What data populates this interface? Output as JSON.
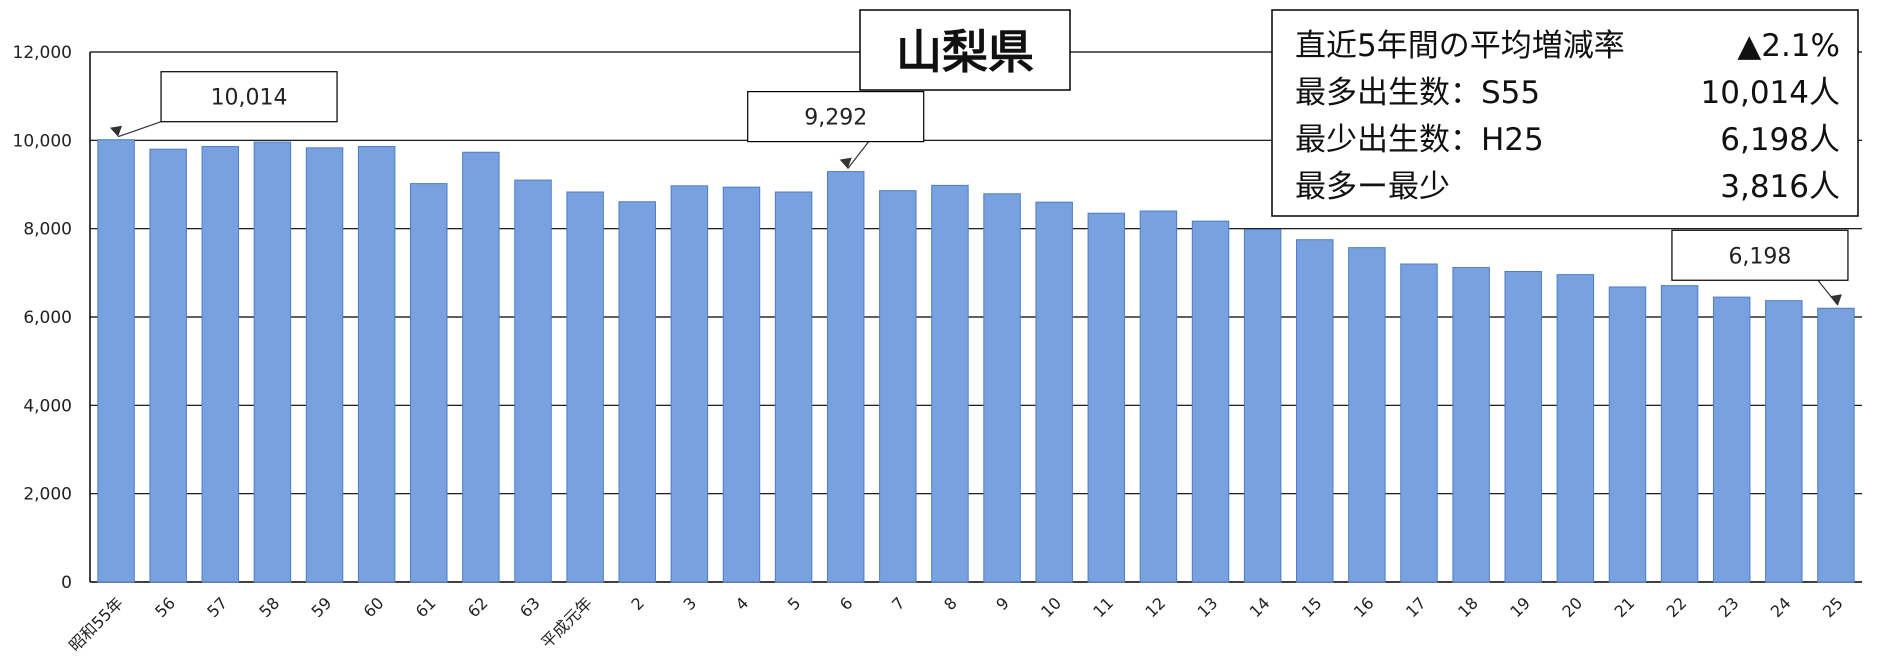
{
  "chart_data": {
    "type": "bar",
    "title": "山梨県",
    "categories": [
      "昭和55年",
      "56",
      "57",
      "58",
      "59",
      "60",
      "61",
      "62",
      "63",
      "平成元年",
      "2",
      "3",
      "4",
      "5",
      "6",
      "7",
      "8",
      "9",
      "10",
      "11",
      "12",
      "13",
      "14",
      "15",
      "16",
      "17",
      "18",
      "19",
      "20",
      "21",
      "22",
      "23",
      "24",
      "25"
    ],
    "values": [
      10014,
      9800,
      9860,
      9960,
      9830,
      9860,
      9020,
      9730,
      9100,
      8830,
      8610,
      8970,
      8940,
      8830,
      9292,
      8860,
      8980,
      8790,
      8600,
      8350,
      8400,
      8170,
      7980,
      7750,
      7570,
      7200,
      7120,
      7030,
      6960,
      6680,
      6710,
      6450,
      6370,
      6198
    ],
    "yticks": [
      "0",
      "2,000",
      "4,000",
      "6,000",
      "8,000",
      "10,000",
      "12,000"
    ],
    "ylim": [
      0,
      12000
    ],
    "xlabel": "",
    "ylabel": "",
    "grid": true,
    "bar_color": "#77a2df",
    "annotations": [
      {
        "text": "10,014",
        "category_index": 0
      },
      {
        "text": "9,292",
        "category_index": 14
      },
      {
        "text": "6,198",
        "category_index": 33
      }
    ],
    "stats": [
      {
        "label": "直近5年間の平均増減率",
        "value": "▲2.1%"
      },
      {
        "label": "最多出生数：S55",
        "value": "10,014人"
      },
      {
        "label": "最少出生数：H25",
        "value": "6,198人"
      },
      {
        "label": "最多ー最少",
        "value": "3,816人"
      }
    ]
  }
}
